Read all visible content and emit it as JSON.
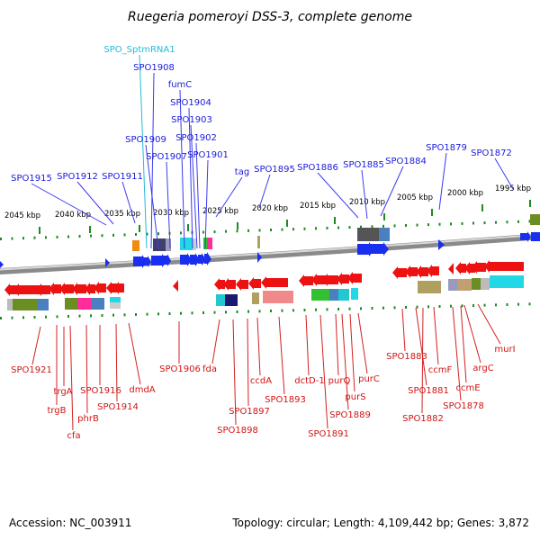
{
  "title": "Ruegeria pomeroyi DSS-3, complete genome",
  "colors": {
    "upper_label": "#1a1adc",
    "upper_line": "#3b3bf0",
    "rna_label": "#22bcd8",
    "lower_label": "#d21414",
    "lower_line": "#d42020",
    "tick": "#1f8a1f",
    "forward_gene": "#1a2ef0",
    "reverse_gene": "#ee1111"
  },
  "scale_ticks": [
    "2045 kbp",
    "2040 kbp",
    "2035 kbp",
    "2030 kbp",
    "2025 kbp",
    "2020 kbp",
    "2015 kbp",
    "2010 kbp",
    "2005 kbp",
    "2000 kbp",
    "1995 kbp"
  ],
  "upper_labels": [
    {
      "text": "SPO_SptmRNA1",
      "kind": "rna"
    },
    {
      "text": "SPO1908"
    },
    {
      "text": "fumC"
    },
    {
      "text": "SPO1904"
    },
    {
      "text": "SPO1903"
    },
    {
      "text": "SPO1909"
    },
    {
      "text": "SPO1902"
    },
    {
      "text": "SPO1907"
    },
    {
      "text": "SPO1901"
    },
    {
      "text": "SPO1879"
    },
    {
      "text": "SPO1872"
    },
    {
      "text": "SPO1886"
    },
    {
      "text": "SPO1885"
    },
    {
      "text": "SPO1884"
    },
    {
      "text": "tag"
    },
    {
      "text": "SPO1895"
    },
    {
      "text": "SPO1915"
    },
    {
      "text": "SPO1912"
    },
    {
      "text": "SPO1911"
    }
  ],
  "lower_labels": [
    {
      "text": "SPO1921"
    },
    {
      "text": "trgA"
    },
    {
      "text": "SPO1916"
    },
    {
      "text": "dmdA"
    },
    {
      "text": "SPO1906"
    },
    {
      "text": "fda"
    },
    {
      "text": "trgB"
    },
    {
      "text": "phrB"
    },
    {
      "text": "SPO1914"
    },
    {
      "text": "cfa"
    },
    {
      "text": "ccdA"
    },
    {
      "text": "SPO1893"
    },
    {
      "text": "SPO1897"
    },
    {
      "text": "SPO1898"
    },
    {
      "text": "dctD-1"
    },
    {
      "text": "purQ"
    },
    {
      "text": "purS"
    },
    {
      "text": "SPO1889"
    },
    {
      "text": "SPO1891"
    },
    {
      "text": "purC"
    },
    {
      "text": "SPO1883"
    },
    {
      "text": "SPO1881"
    },
    {
      "text": "SPO1882"
    },
    {
      "text": "ccmF"
    },
    {
      "text": "ccmE"
    },
    {
      "text": "SPO1878"
    },
    {
      "text": "argC"
    },
    {
      "text": "murI"
    }
  ],
  "footer": {
    "accession": "Accession: NC_003911",
    "summary": "Topology: circular; Length: 4,109,442 bp; Genes: 3,872"
  }
}
